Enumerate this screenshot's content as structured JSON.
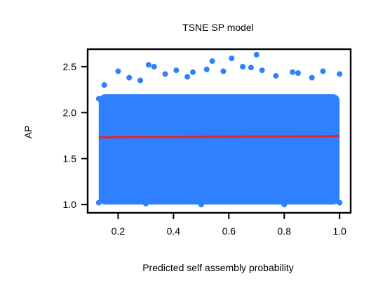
{
  "chart_data": {
    "type": "scatter",
    "title": "TSNE SP model",
    "xlabel": "Predicted self assembly probability",
    "ylabel": "AP",
    "xlim": [
      0.09,
      1.04
    ],
    "ylim": [
      0.91,
      2.69
    ],
    "xticks": [
      0.2,
      0.4,
      0.6,
      0.8,
      1.0
    ],
    "xtick_labels": [
      "0.2",
      "0.4",
      "0.6",
      "0.8",
      "1.0"
    ],
    "yticks": [
      1.0,
      1.5,
      2.0,
      2.5
    ],
    "ytick_labels": [
      "1.0",
      "1.5",
      "2.0",
      "2.5"
    ],
    "grid": false,
    "series": [
      {
        "kind": "scatter",
        "color": "#2f80ff",
        "dense_region": {
          "x": [
            0.13,
            1.0
          ],
          "y": [
            1.0,
            2.2
          ]
        },
        "points": [
          {
            "x": 0.13,
            "y": 1.02
          },
          {
            "x": 0.13,
            "y": 2.15
          },
          {
            "x": 0.15,
            "y": 2.3
          },
          {
            "x": 0.2,
            "y": 2.45
          },
          {
            "x": 0.24,
            "y": 2.38
          },
          {
            "x": 0.28,
            "y": 2.35
          },
          {
            "x": 0.31,
            "y": 2.52
          },
          {
            "x": 0.33,
            "y": 2.5
          },
          {
            "x": 0.37,
            "y": 2.42
          },
          {
            "x": 0.41,
            "y": 2.46
          },
          {
            "x": 0.45,
            "y": 2.39
          },
          {
            "x": 0.47,
            "y": 2.44
          },
          {
            "x": 0.52,
            "y": 2.47
          },
          {
            "x": 0.54,
            "y": 2.56
          },
          {
            "x": 0.58,
            "y": 2.45
          },
          {
            "x": 0.61,
            "y": 2.59
          },
          {
            "x": 0.65,
            "y": 2.5
          },
          {
            "x": 0.68,
            "y": 2.49
          },
          {
            "x": 0.7,
            "y": 2.63
          },
          {
            "x": 0.72,
            "y": 2.46
          },
          {
            "x": 0.77,
            "y": 2.4
          },
          {
            "x": 0.83,
            "y": 2.44
          },
          {
            "x": 0.85,
            "y": 2.43
          },
          {
            "x": 0.9,
            "y": 2.38
          },
          {
            "x": 0.94,
            "y": 2.45
          },
          {
            "x": 1.0,
            "y": 2.42
          },
          {
            "x": 1.0,
            "y": 1.02
          },
          {
            "x": 0.5,
            "y": 1.0
          },
          {
            "x": 0.3,
            "y": 1.01
          },
          {
            "x": 0.8,
            "y": 1.0
          }
        ]
      },
      {
        "kind": "line",
        "color": "#e8251e",
        "points": [
          {
            "x": 0.13,
            "y": 1.73
          },
          {
            "x": 1.0,
            "y": 1.745
          }
        ]
      }
    ]
  }
}
